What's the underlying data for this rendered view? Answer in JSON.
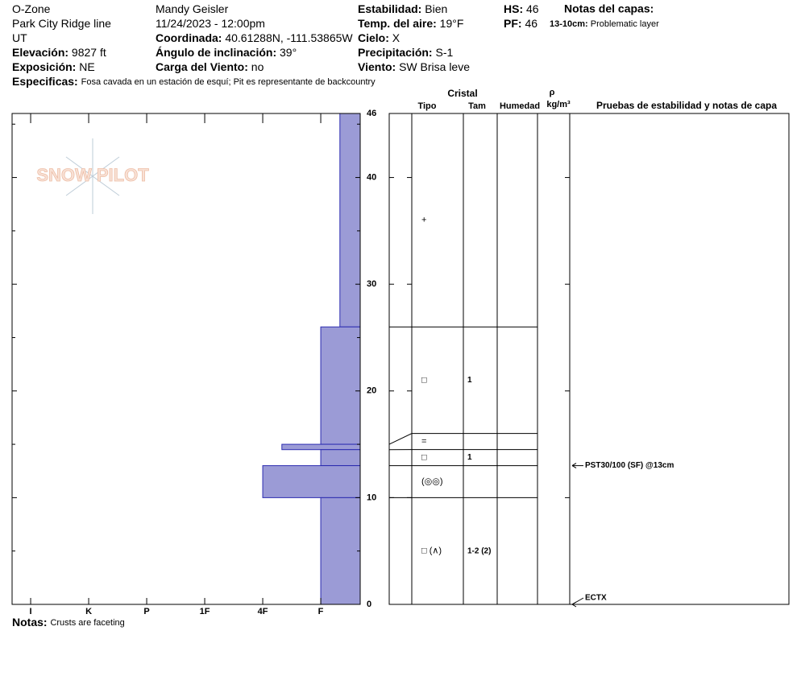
{
  "header": {
    "columns": [
      [
        {
          "value": "O-Zone"
        },
        {
          "value": "Park City Ridge line"
        },
        {
          "value": "UT"
        },
        {
          "label": "Elevación:",
          "value": "9827 ft"
        },
        {
          "label": "Exposición:",
          "value": "NE"
        }
      ],
      [
        {
          "value": "Mandy Geisler"
        },
        {
          "value": "11/24/2023 - 12:00pm"
        },
        {
          "label": "Coordinada:",
          "value": "40.61288N, -111.53865W"
        },
        {
          "label": "Ángulo de inclinación:",
          "value": "39°"
        },
        {
          "label": "Carga del Viento:",
          "value": "no"
        }
      ],
      [
        {
          "label": "Estabilidad:",
          "value": "Bien"
        },
        {
          "label": "Temp. del aire:",
          "value": "19°F"
        },
        {
          "label": "Cielo:",
          "value": "X"
        },
        {
          "label": "Precipitación:",
          "value": "S-1"
        },
        {
          "label": "Viento:",
          "value": "SW Brisa leve"
        }
      ],
      [
        {
          "label": "HS:",
          "value": "46"
        },
        {
          "label": "PF:",
          "value": "46"
        }
      ]
    ],
    "layer_notes_title": "Notas del capas:",
    "layer_note": {
      "label": "13-10cm:",
      "value": "Problematic layer"
    },
    "specifics": {
      "label": "Especificas:",
      "value": "Fosa cavada en un estación de esquí; Pit es representante de backcountry"
    }
  },
  "notes": {
    "label": "Notas:",
    "value": "Crusts are faceting"
  },
  "logo": "SNOW PILOT",
  "profile": {
    "type": "bar",
    "color": "#9b9bd6",
    "ylim": [
      0,
      46
    ],
    "yticks": [
      0,
      10,
      20,
      30,
      40,
      46
    ],
    "yminor": [
      5,
      15,
      25,
      35,
      45
    ],
    "xlim": [
      6.32,
      0.32
    ],
    "xticks": [
      {
        "value": 6,
        "label": "I"
      },
      {
        "value": 5,
        "label": "K"
      },
      {
        "value": 4,
        "label": "P"
      },
      {
        "value": 3,
        "label": "1F"
      },
      {
        "value": 2,
        "label": "4F"
      },
      {
        "value": 1,
        "label": "F"
      }
    ],
    "columns": {
      "crystal": "Cristal",
      "type": "Tipo",
      "size": "Tam",
      "moisture": "Humedad",
      "rho": "ρ",
      "density_unit": "kg/m³",
      "tests": "Pruebas de estabilidad y notas de capa"
    },
    "layers": [
      {
        "top": 46,
        "bottom": 26,
        "hardness": 0.67,
        "grain": "+"
      },
      {
        "top": 26,
        "bottom": 15,
        "hardness": 1,
        "grain": "□",
        "size": "1"
      },
      {
        "top": 15,
        "bottom": 14.5,
        "hardness": 1.67,
        "grain": "="
      },
      {
        "top": 14.5,
        "bottom": 13,
        "hardness": 1,
        "grain": "□",
        "size": "1"
      },
      {
        "top": 13,
        "bottom": 10,
        "hardness": 2,
        "grain": "(◎◎)"
      },
      {
        "top": 10,
        "bottom": 0,
        "hardness": 1,
        "grain": "□ (∧)",
        "size": "1-2 (2)"
      }
    ],
    "tests": [
      {
        "label": "PST30/100 (SF) @13cm",
        "height": 13
      },
      {
        "label": "ECTX",
        "height": 0
      }
    ]
  }
}
